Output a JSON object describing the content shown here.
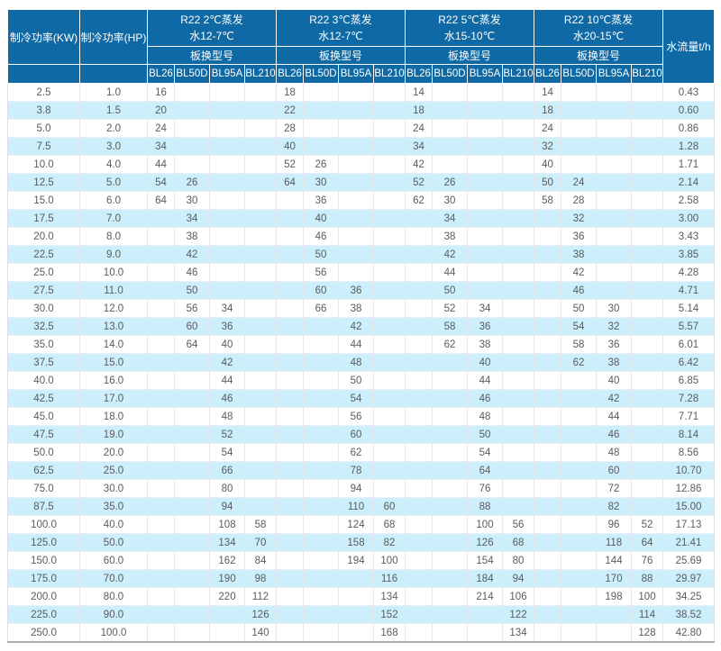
{
  "chart_data": {
    "type": "table",
    "header": {
      "kw": "制冷功率(KW)",
      "hp": "制冷功率(HP)",
      "flow": "水流量t/h",
      "model_row_label": "板换型号",
      "models": [
        "BL26",
        "BL50D",
        "BL95A",
        "BL210"
      ],
      "groups": [
        {
          "line1": "R22 2℃蒸发",
          "line2": "水12-7℃"
        },
        {
          "line1": "R22 3℃蒸发",
          "line2": "水12-7℃"
        },
        {
          "line1": "R22 5℃蒸发",
          "line2": "水15-10℃"
        },
        {
          "line1": "R22 10℃蒸发",
          "line2": "水20-15℃"
        }
      ]
    },
    "rows": [
      [
        "2.5",
        "1.0",
        "16",
        "",
        "",
        "",
        "18",
        "",
        "",
        "",
        "14",
        "",
        "",
        "",
        "14",
        "",
        "",
        "",
        "0.43"
      ],
      [
        "3.8",
        "1.5",
        "20",
        "",
        "",
        "",
        "22",
        "",
        "",
        "",
        "18",
        "",
        "",
        "",
        "18",
        "",
        "",
        "",
        "0.60"
      ],
      [
        "5.0",
        "2.0",
        "24",
        "",
        "",
        "",
        "28",
        "",
        "",
        "",
        "24",
        "",
        "",
        "",
        "24",
        "",
        "",
        "",
        "0.86"
      ],
      [
        "7.5",
        "3.0",
        "34",
        "",
        "",
        "",
        "40",
        "",
        "",
        "",
        "34",
        "",
        "",
        "",
        "32",
        "",
        "",
        "",
        "1.28"
      ],
      [
        "10.0",
        "4.0",
        "44",
        "",
        "",
        "",
        "52",
        "26",
        "",
        "",
        "42",
        "",
        "",
        "",
        "40",
        "",
        "",
        "",
        "1.71"
      ],
      [
        "12.5",
        "5.0",
        "54",
        "26",
        "",
        "",
        "64",
        "30",
        "",
        "",
        "52",
        "26",
        "",
        "",
        "50",
        "24",
        "",
        "",
        "2.14"
      ],
      [
        "15.0",
        "6.0",
        "64",
        "30",
        "",
        "",
        "",
        "36",
        "",
        "",
        "62",
        "30",
        "",
        "",
        "58",
        "28",
        "",
        "",
        "2.58"
      ],
      [
        "17.5",
        "7.0",
        "",
        "34",
        "",
        "",
        "",
        "40",
        "",
        "",
        "",
        "34",
        "",
        "",
        "",
        "32",
        "",
        "",
        "3.00"
      ],
      [
        "20.0",
        "8.0",
        "",
        "38",
        "",
        "",
        "",
        "46",
        "",
        "",
        "",
        "38",
        "",
        "",
        "",
        "36",
        "",
        "",
        "3.43"
      ],
      [
        "22.5",
        "9.0",
        "",
        "42",
        "",
        "",
        "",
        "50",
        "",
        "",
        "",
        "42",
        "",
        "",
        "",
        "38",
        "",
        "",
        "3.85"
      ],
      [
        "25.0",
        "10.0",
        "",
        "46",
        "",
        "",
        "",
        "56",
        "",
        "",
        "",
        "44",
        "",
        "",
        "",
        "42",
        "",
        "",
        "4.28"
      ],
      [
        "27.5",
        "11.0",
        "",
        "50",
        "",
        "",
        "",
        "60",
        "36",
        "",
        "",
        "50",
        "",
        "",
        "",
        "46",
        "",
        "",
        "4.71"
      ],
      [
        "30.0",
        "12.0",
        "",
        "56",
        "34",
        "",
        "",
        "66",
        "38",
        "",
        "",
        "52",
        "34",
        "",
        "",
        "50",
        "30",
        "",
        "5.14"
      ],
      [
        "32.5",
        "13.0",
        "",
        "60",
        "36",
        "",
        "",
        "",
        "42",
        "",
        "",
        "58",
        "36",
        "",
        "",
        "54",
        "32",
        "",
        "5.57"
      ],
      [
        "35.0",
        "14.0",
        "",
        "64",
        "40",
        "",
        "",
        "",
        "44",
        "",
        "",
        "62",
        "38",
        "",
        "",
        "58",
        "36",
        "",
        "6.01"
      ],
      [
        "37.5",
        "15.0",
        "",
        "",
        "42",
        "",
        "",
        "",
        "48",
        "",
        "",
        "",
        "40",
        "",
        "",
        "62",
        "38",
        "",
        "6.42"
      ],
      [
        "40.0",
        "16.0",
        "",
        "",
        "44",
        "",
        "",
        "",
        "50",
        "",
        "",
        "",
        "44",
        "",
        "",
        "",
        "40",
        "",
        "6.85"
      ],
      [
        "42.5",
        "17.0",
        "",
        "",
        "46",
        "",
        "",
        "",
        "54",
        "",
        "",
        "",
        "46",
        "",
        "",
        "",
        "42",
        "",
        "7.28"
      ],
      [
        "45.0",
        "18.0",
        "",
        "",
        "48",
        "",
        "",
        "",
        "56",
        "",
        "",
        "",
        "48",
        "",
        "",
        "",
        "44",
        "",
        "7.71"
      ],
      [
        "47.5",
        "19.0",
        "",
        "",
        "52",
        "",
        "",
        "",
        "60",
        "",
        "",
        "",
        "50",
        "",
        "",
        "",
        "46",
        "",
        "8.14"
      ],
      [
        "50.0",
        "20.0",
        "",
        "",
        "54",
        "",
        "",
        "",
        "62",
        "",
        "",
        "",
        "54",
        "",
        "",
        "",
        "48",
        "",
        "8.56"
      ],
      [
        "62.5",
        "25.0",
        "",
        "",
        "66",
        "",
        "",
        "",
        "78",
        "",
        "",
        "",
        "64",
        "",
        "",
        "",
        "60",
        "",
        "10.70"
      ],
      [
        "75.0",
        "30.0",
        "",
        "",
        "80",
        "",
        "",
        "",
        "94",
        "",
        "",
        "",
        "76",
        "",
        "",
        "",
        "72",
        "",
        "12.86"
      ],
      [
        "87.5",
        "35.0",
        "",
        "",
        "94",
        "",
        "",
        "",
        "110",
        "60",
        "",
        "",
        "88",
        "",
        "",
        "",
        "82",
        "",
        "15.00"
      ],
      [
        "100.0",
        "40.0",
        "",
        "",
        "108",
        "58",
        "",
        "",
        "124",
        "68",
        "",
        "",
        "100",
        "56",
        "",
        "",
        "96",
        "52",
        "17.13"
      ],
      [
        "125.0",
        "50.0",
        "",
        "",
        "134",
        "70",
        "",
        "",
        "158",
        "82",
        "",
        "",
        "126",
        "68",
        "",
        "",
        "118",
        "64",
        "21.41"
      ],
      [
        "150.0",
        "60.0",
        "",
        "",
        "162",
        "84",
        "",
        "",
        "194",
        "100",
        "",
        "",
        "154",
        "80",
        "",
        "",
        "144",
        "76",
        "25.69"
      ],
      [
        "175.0",
        "70.0",
        "",
        "",
        "190",
        "98",
        "",
        "",
        "",
        "116",
        "",
        "",
        "184",
        "94",
        "",
        "",
        "170",
        "88",
        "29.97"
      ],
      [
        "200.0",
        "80.0",
        "",
        "",
        "220",
        "112",
        "",
        "",
        "",
        "134",
        "",
        "",
        "214",
        "106",
        "",
        "",
        "198",
        "100",
        "34.25"
      ],
      [
        "225.0",
        "90.0",
        "",
        "",
        "",
        "126",
        "",
        "",
        "",
        "152",
        "",
        "",
        "",
        "122",
        "",
        "",
        "",
        "114",
        "38.52"
      ],
      [
        "250.0",
        "100.0",
        "",
        "",
        "",
        "140",
        "",
        "",
        "",
        "168",
        "",
        "",
        "",
        "134",
        "",
        "",
        "",
        "128",
        "42.80"
      ]
    ],
    "colors": {
      "header_bg": "#0E69A4",
      "header_text": "#FFFFFF",
      "stripe": "#CDEEFB",
      "data_text": "#595B5E",
      "bottom_border": "#AAB0B5"
    }
  }
}
